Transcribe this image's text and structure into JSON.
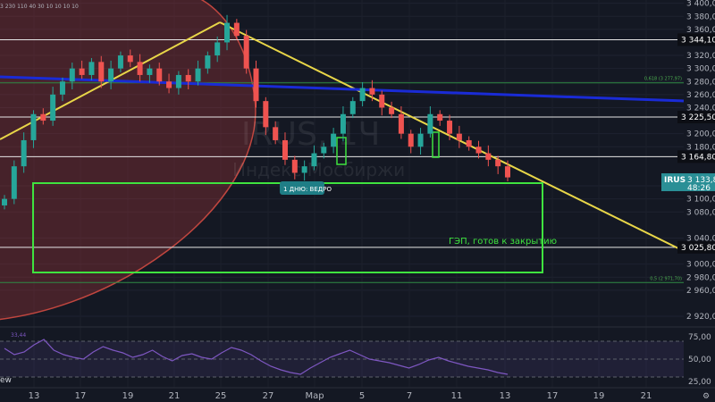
{
  "header": {
    "ohlc_text": "3 230 110 40 30 10 10 10 10"
  },
  "watermark": {
    "symbol": "IRUS, 1Ч",
    "name": "Индекс Мосбиржи"
  },
  "chart_data": {
    "type": "candlestick",
    "symbol": "IRUS",
    "x_labels": [
      "13",
      "17",
      "19",
      "21",
      "25",
      "27",
      "Мар",
      "5",
      "7",
      "11",
      "13",
      "17",
      "19",
      "21"
    ],
    "y_ticks": [
      "3 400,00",
      "3 380,00",
      "3 360,00",
      "3 320,00",
      "3 300,00",
      "3 280,00",
      "3 260,00",
      "3 240,00",
      "3 200,00",
      "3 180,00",
      "3 120,00",
      "3 100,00",
      "3 080,00",
      "3 040,00",
      "3 000,00",
      "2 980,00",
      "2 960,00",
      "2 920,00"
    ],
    "ylim": [
      2905,
      3405
    ],
    "horizontal_levels": [
      {
        "label": "3 344,10",
        "value": 3344.1
      },
      {
        "label": "3 225,50",
        "value": 3225.5
      },
      {
        "label": "3 164,80",
        "value": 3164.8
      },
      {
        "label": "3 025,80",
        "value": 3025.8
      }
    ],
    "fib_levels": [
      {
        "label": "0,618 (3 277,97)",
        "value": 3277.97
      },
      {
        "label": "0,5 (2 971,70)",
        "value": 2971.7
      }
    ],
    "last_price": {
      "symbol": "IRUS",
      "price": "3 133,81",
      "countdown": "48:26",
      "value": 3133.81
    },
    "annotations": {
      "dividend_flag": "1 ДНЮ: ВЕДРО",
      "gap_note": "ГЭП, готов к закрытию"
    },
    "series": [
      {
        "name": "IRUS",
        "close": [
          3100,
          3150,
          3190,
          3230,
          3220,
          3260,
          3280,
          3300,
          3290,
          3310,
          3280,
          3300,
          3320,
          3310,
          3290,
          3300,
          3280,
          3270,
          3290,
          3280,
          3300,
          3320,
          3340,
          3370,
          3350,
          3300,
          3250,
          3210,
          3190,
          3160,
          3140,
          3150,
          3170,
          3180,
          3200,
          3230,
          3250,
          3270,
          3260,
          3240,
          3230,
          3200,
          3180,
          3200,
          3230,
          3220,
          3200,
          3190,
          3180,
          3170,
          3160,
          3150,
          3133
        ]
      }
    ],
    "rsi": {
      "value_label": "33,44",
      "ticks": [
        "75,00",
        "50,00",
        "25,00"
      ],
      "ylim": [
        20,
        80
      ],
      "levels": [
        70,
        50,
        30
      ],
      "values": [
        62,
        55,
        58,
        66,
        72,
        60,
        55,
        52,
        50,
        58,
        64,
        60,
        57,
        52,
        55,
        60,
        53,
        48,
        54,
        56,
        52,
        50,
        57,
        63,
        60,
        55,
        48,
        42,
        38,
        35,
        33,
        40,
        46,
        52,
        56,
        60,
        55,
        50,
        48,
        46,
        43,
        40,
        44,
        49,
        52,
        48,
        45,
        42,
        40,
        38,
        35,
        33
      ]
    }
  }
}
